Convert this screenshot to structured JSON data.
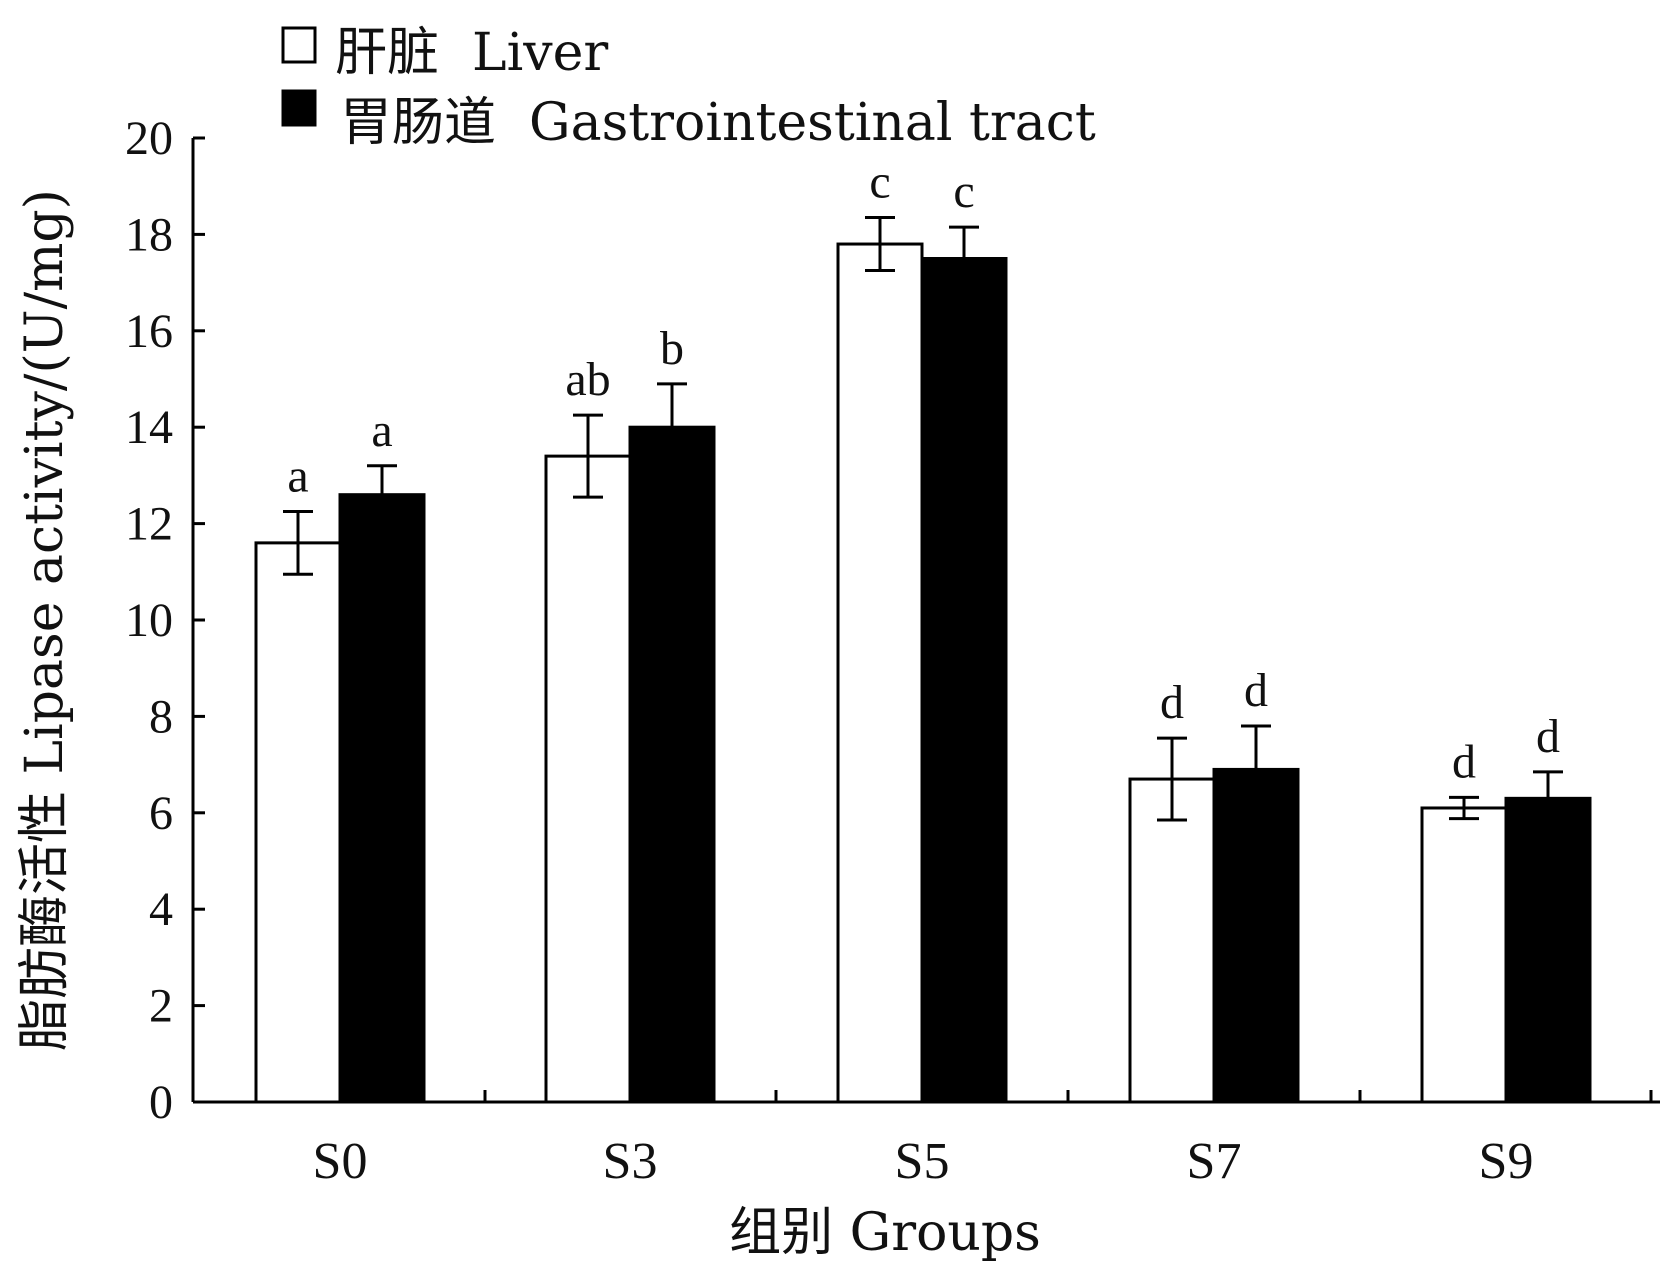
{
  "chart_data": {
    "type": "bar",
    "title": "",
    "xlabel": "组别 Groups",
    "ylabel": "脂肪酶活性 Lipase activity/(U/mg)",
    "categories": [
      "S0",
      "S3",
      "S5",
      "S7",
      "S9"
    ],
    "ylim": [
      0,
      20
    ],
    "yticks": [
      "0",
      "2",
      "4",
      "6",
      "8",
      "10",
      "12",
      "14",
      "16",
      "18",
      "20"
    ],
    "legend_position": "top-left",
    "grid": false,
    "series": [
      {
        "name": "肝脏  Liver",
        "fill": "#ffffff",
        "values": [
          11.6,
          13.4,
          17.8,
          6.7,
          6.1
        ],
        "errors": [
          0.65,
          0.85,
          0.55,
          0.85,
          0.22
        ],
        "labels": [
          "a",
          "ab",
          "c",
          "d",
          "d"
        ]
      },
      {
        "name": "胃肠道  Gastrointestinal tract",
        "fill": "#000000",
        "values": [
          12.6,
          14.0,
          17.5,
          6.9,
          6.3
        ],
        "errors": [
          0.6,
          0.9,
          0.65,
          0.9,
          0.55
        ],
        "labels": [
          "a",
          "b",
          "c",
          "d",
          "d"
        ]
      }
    ]
  }
}
